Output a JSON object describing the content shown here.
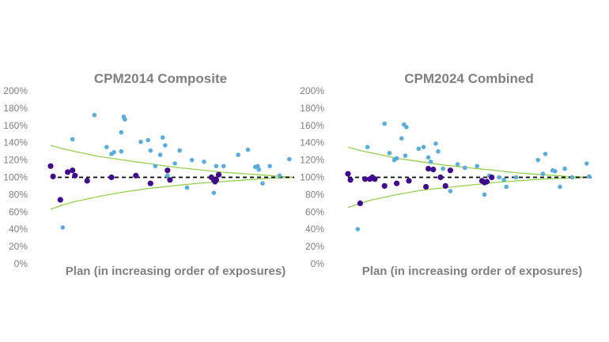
{
  "chart_data": [
    {
      "type": "scatter",
      "title": "CPM2014 Composite",
      "xlabel": "Plan (in increasing order of exposures)",
      "ylabel": "",
      "ylim": [
        0,
        200
      ],
      "y_tick_labels": [
        "0%",
        "20%",
        "40%",
        "60%",
        "80%",
        "100%",
        "120%",
        "140%",
        "160%",
        "180%",
        "200%"
      ],
      "xlim": [
        0,
        100
      ],
      "grid": false,
      "colors": {
        "light": "#5aaddb",
        "dark": "#3f0a8c",
        "band": "#92d050",
        "reference": "#000000"
      },
      "reference_line": {
        "y": 100,
        "style": "dashed"
      },
      "band": {
        "x": [
          0,
          5,
          10,
          20,
          30,
          40,
          50,
          60,
          70,
          80,
          90,
          100
        ],
        "upper": [
          137,
          133,
          130,
          124,
          120,
          116,
          112,
          109,
          106,
          104,
          102,
          100
        ],
        "lower": [
          63,
          68,
          72,
          78,
          83,
          87,
          90,
          93,
          95,
          97,
          99,
          100
        ]
      },
      "series": [
        {
          "color_key": "light",
          "x": [
            5,
            9,
            18,
            23,
            25,
            26,
            29,
            29,
            30,
            30.5,
            37,
            40,
            41,
            43,
            45,
            46,
            47,
            48,
            51,
            53,
            56,
            58,
            63,
            67,
            68,
            71,
            77,
            81,
            84,
            85,
            85.5,
            87,
            90,
            94,
            98
          ],
          "y": [
            42,
            144,
            172,
            135,
            127,
            129,
            152,
            130,
            170,
            167,
            141,
            143,
            131,
            113,
            126,
            146,
            137,
            102,
            116,
            131,
            88,
            120,
            118,
            82,
            113,
            113,
            126,
            132,
            112,
            113,
            109,
            93,
            113,
            102,
            121
          ]
        },
        {
          "color_key": "dark",
          "x": [
            0,
            1,
            4,
            7,
            9,
            10,
            15,
            25,
            35,
            41,
            48,
            49,
            66,
            67,
            67.5,
            68,
            69
          ],
          "y": [
            113,
            101,
            74,
            106,
            108,
            102,
            96,
            100,
            102,
            93,
            108,
            97,
            100,
            97,
            95,
            97,
            103
          ]
        }
      ]
    },
    {
      "type": "scatter",
      "title": "CPM2024 Combined",
      "xlabel": "Plan (in increasing order of exposures)",
      "ylabel": "",
      "ylim": [
        0,
        200
      ],
      "y_tick_labels": [
        "0%",
        "20%",
        "40%",
        "60%",
        "80%",
        "100%",
        "120%",
        "140%",
        "160%",
        "180%",
        "200%"
      ],
      "xlim": [
        0,
        100
      ],
      "grid": false,
      "colors": {
        "light": "#5aaddb",
        "dark": "#3f0a8c",
        "band": "#92d050",
        "reference": "#000000"
      },
      "reference_line": {
        "y": 100,
        "style": "dashed"
      },
      "band": {
        "x": [
          0,
          5,
          10,
          20,
          30,
          40,
          50,
          60,
          70,
          80,
          90,
          100
        ],
        "upper": [
          135,
          131,
          128,
          122,
          118,
          114,
          111,
          108,
          105,
          103,
          101,
          100
        ],
        "lower": [
          65,
          70,
          74,
          80,
          85,
          88,
          91,
          94,
          96,
          98,
          99,
          100
        ]
      },
      "series": [
        {
          "color_key": "light",
          "x": [
            4,
            8,
            15,
            17,
            19,
            20,
            22,
            23,
            23.5,
            24,
            29,
            31,
            33,
            34,
            36,
            37,
            39,
            42,
            45,
            48,
            53,
            56,
            58,
            62,
            64,
            65,
            69,
            78,
            80,
            81,
            84,
            85,
            87,
            89,
            92,
            98,
            99
          ],
          "y": [
            40,
            135,
            162,
            128,
            120,
            122,
            145,
            161,
            125,
            158,
            133,
            135,
            123,
            118,
            139,
            130,
            110,
            84,
            115,
            111,
            113,
            80,
            102,
            100,
            97,
            89,
            100,
            120,
            104,
            127,
            108,
            107,
            89,
            110,
            100,
            116,
            101
          ]
        },
        {
          "color_key": "dark",
          "x": [
            0,
            1,
            5,
            7,
            9,
            10,
            11,
            15,
            20,
            25,
            32,
            33,
            35,
            38,
            40,
            42,
            55,
            56,
            57,
            59
          ],
          "y": [
            104,
            97,
            70,
            98,
            98,
            100,
            98,
            90,
            93,
            96,
            89,
            110,
            109,
            100,
            90,
            108,
            96,
            94,
            95,
            100
          ]
        }
      ]
    }
  ]
}
